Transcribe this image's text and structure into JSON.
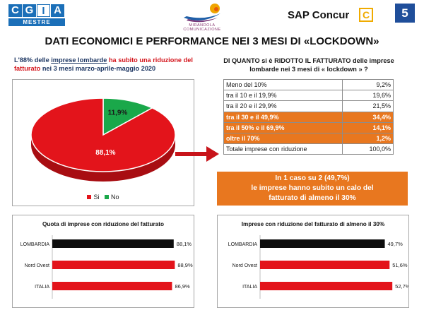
{
  "header": {
    "cgia_letters": [
      "C",
      "G",
      "I",
      "A"
    ],
    "cgia_sub": "MESTRE",
    "mirandola_name": "MIRANDOLA",
    "mirandola_sub": "COMUNICAZIONE",
    "sap_label": "SAP Concur",
    "sap_icon_glyph": "C",
    "page_number": "5"
  },
  "title": "DATI ECONOMICI E PERFORMANCE NEI 3 MESI DI «LOCKDOWN»",
  "left": {
    "text_part1": "L'88% delle ",
    "text_part2": "imprese lombarde",
    "text_part3": " ha subito una riduzione del fatturato",
    "text_part4": " nei 3 mesi marzo-aprile-maggio 2020",
    "pie_legend_si": "Si",
    "pie_legend_no": "No"
  },
  "right": {
    "title": "DI QUANTO si è RIDOTTO IL FATTURATO delle imprese lombarde nei 3 mesi di « lockdown » ?",
    "rows": [
      {
        "label": "Meno del 10%",
        "value": "9,2%",
        "highlight": false
      },
      {
        "label": "tra il 10 e il 19,9%",
        "value": "19,6%",
        "highlight": false
      },
      {
        "label": "tra il 20 e il 29,9%",
        "value": "21,5%",
        "highlight": false
      },
      {
        "label": "tra il 30 e il 49,9%",
        "value": "34,4%",
        "highlight": true
      },
      {
        "label": "tra il 50% e il 69,9%",
        "value": "14,1%",
        "highlight": true
      },
      {
        "label": "oltre il 70%",
        "value": "1,2%",
        "highlight": true
      },
      {
        "label": "Totale imprese con riduzione",
        "value": "100,0%",
        "highlight": false
      }
    ],
    "callout_line1": "In 1 caso su 2 (49,7%)",
    "callout_line2": "le imprese hanno subito un calo del",
    "callout_line3": "fatturato di almeno il 30%"
  },
  "colors": {
    "red": "#e3141b",
    "green": "#1aa84a",
    "orange": "#e8771f",
    "black": "#0d0d0d",
    "navy": "#1f4e9a"
  },
  "chart_data": [
    {
      "type": "pie",
      "categories": [
        "Si",
        "No"
      ],
      "values": [
        88.1,
        11.9
      ],
      "labels": [
        "88,1%",
        "11,9%"
      ],
      "title": ""
    },
    {
      "type": "bar",
      "orientation": "horizontal",
      "title": "Quota di imprese con riduzione del fatturato",
      "categories": [
        "LOMBARDIA",
        "Nord Ovest",
        "ITALIA"
      ],
      "values": [
        88.1,
        88.9,
        86.9
      ],
      "labels": [
        "88,1%",
        "88,9%",
        "86,9%"
      ],
      "xlim": [
        0,
        100
      ]
    },
    {
      "type": "bar",
      "orientation": "horizontal",
      "title": "Imprese con riduzione del fatturato di almeno il 30%",
      "categories": [
        "LOMBARDIA",
        "Nord Ovest",
        "ITALIA"
      ],
      "values": [
        49.7,
        51.6,
        52.7
      ],
      "labels": [
        "49,7%",
        "51,6%",
        "52,7%"
      ],
      "xlim": [
        0,
        58
      ]
    }
  ]
}
